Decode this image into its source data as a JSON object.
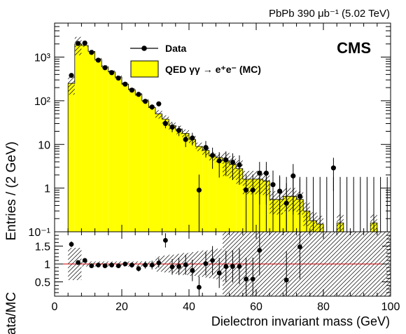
{
  "header": {
    "lumi": "PbPb 390 μb⁻¹ (5.02 TeV)",
    "experiment": "CMS"
  },
  "chart_data": [
    {
      "type": "histogram",
      "panel": "main",
      "ylabel": "Entries / (2 GeV)",
      "log_y": true,
      "ylim": [
        0.1,
        6000
      ],
      "xlim": [
        0,
        100
      ],
      "y_tick_labels": [
        "10⁻¹",
        "1",
        "10",
        "10²",
        "10³"
      ],
      "legend_position": "top-center",
      "legend": [
        {
          "label": "Data",
          "marker": "filled-circle-with-line"
        },
        {
          "label": "QED γγ → e⁺e⁻ (MC)",
          "color": "#ffff00"
        }
      ],
      "bin_edges": [
        4,
        6,
        8,
        10,
        12,
        14,
        16,
        18,
        20,
        22,
        24,
        26,
        28,
        30,
        32,
        34,
        36,
        38,
        40,
        42,
        44,
        46,
        48,
        50,
        52,
        54,
        56,
        58,
        60,
        62,
        64,
        66,
        68,
        70,
        72,
        74,
        76,
        78,
        80,
        82,
        84,
        86,
        88,
        90,
        92,
        94,
        96,
        98,
        100
      ],
      "mc_values": [
        250,
        2000,
        1850,
        1350,
        880,
        600,
        460,
        350,
        240,
        180,
        140,
        100,
        70,
        50,
        38,
        27,
        22,
        18,
        13,
        9,
        7.3,
        5.5,
        5.0,
        4.2,
        3.5,
        2.8,
        1.6,
        1.6,
        1.6,
        1.45,
        0.55,
        0.55,
        0.65,
        0.65,
        0.55,
        0.3,
        0.18,
        0.15,
        0.1,
        0.1,
        0.16,
        0.1,
        0.1,
        0.1,
        0.1,
        0.16,
        0.1,
        0.1
      ],
      "mc_color": "#ffff00",
      "data_points": {
        "x": [
          5,
          7,
          9,
          11,
          13,
          15,
          17,
          19,
          21,
          23,
          25,
          27,
          29,
          31,
          33,
          35,
          37,
          39,
          41,
          43,
          45,
          47,
          49,
          51,
          53,
          55,
          57,
          59,
          61,
          63,
          65,
          67,
          69,
          71,
          73,
          83
        ],
        "y": [
          380,
          2050,
          2100,
          1280,
          850,
          570,
          440,
          330,
          240,
          175,
          140,
          97,
          72,
          85,
          30,
          25,
          21,
          13,
          14,
          0.9,
          8.5,
          5.6,
          4.2,
          4.4,
          3.9,
          3.4,
          0.9,
          0.9,
          2.2,
          2.2,
          1.2,
          0.85,
          0.45,
          1.9,
          0.65,
          2.9
        ]
      },
      "upper_limit_bins_x": [
        61,
        63,
        65,
        67,
        69,
        71,
        73,
        75,
        77,
        79,
        81,
        83,
        85,
        87,
        89,
        91,
        93,
        95,
        97,
        99
      ]
    },
    {
      "type": "scatter",
      "panel": "ratio",
      "ylabel": "Data/MC",
      "xlabel": "Dielectron invariant mass (GeV)",
      "xlim": [
        0,
        100
      ],
      "ylim": [
        0.1,
        1.9
      ],
      "x_ticks": [
        "0",
        "20",
        "40",
        "60",
        "80",
        "100"
      ],
      "y_ticks": [
        "0.5",
        "1",
        "1.5"
      ],
      "reference_line": 1,
      "reference_color": "#cc0000",
      "points": {
        "x": [
          5,
          7,
          9,
          11,
          13,
          15,
          17,
          19,
          21,
          23,
          25,
          27,
          29,
          31,
          33,
          35,
          37,
          39,
          41,
          43,
          45,
          47,
          49,
          51,
          53,
          55,
          57,
          59,
          61,
          69,
          73
        ],
        "y": [
          1.55,
          1.04,
          1.1,
          0.95,
          0.97,
          0.95,
          0.97,
          0.95,
          1.0,
          0.97,
          0.87,
          0.97,
          0.97,
          1.03,
          1.66,
          0.92,
          0.93,
          0.98,
          0.82,
          0.35,
          1.01,
          1.1,
          0.75,
          0.93,
          0.93,
          0.93,
          0.58,
          0.58,
          1.38,
          0.55,
          1.48
        ],
        "err": [
          0.08,
          0.03,
          0.03,
          0.03,
          0.03,
          0.04,
          0.05,
          0.05,
          0.06,
          0.07,
          0.08,
          0.1,
          0.12,
          0.13,
          0.2,
          0.22,
          0.24,
          0.28,
          0.3,
          0.3,
          0.33,
          0.4,
          0.42,
          0.44,
          0.45,
          0.5,
          0.6,
          0.6,
          0.7,
          0.8,
          0.9
        ]
      }
    }
  ]
}
